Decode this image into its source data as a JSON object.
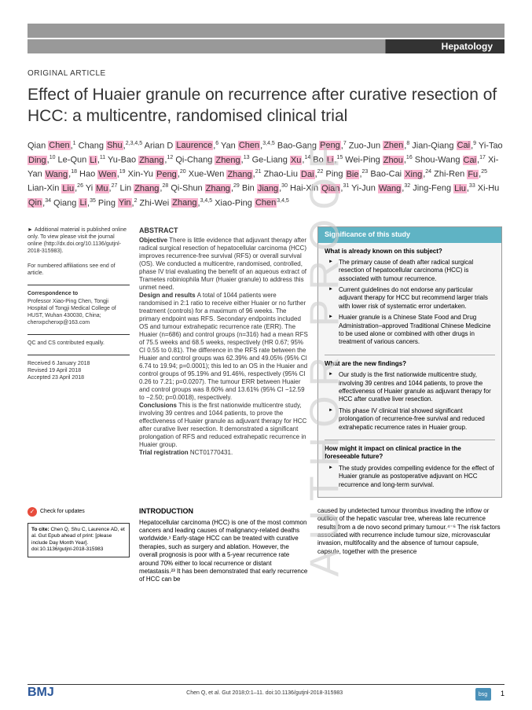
{
  "journal_section": "Hepatology",
  "article_type": "ORIGINAL ARTICLE",
  "title": "Effect of Huaier granule on recurrence after curative resection of HCC: a multicentre, randomised clinical trial",
  "authors_html": "Qian <span class='hl'>Chen</span>,<sup>1</sup> Chang <span class='hl'>Shu</span>,<sup>2,3,4,5</sup> Arian D <span class='hl'>Laurence</span>,<sup>6</sup> Yan <span class='hl'>Chen</span>,<sup>3,4,5</sup> Bao-Gang <span class='hl'>Peng</span>,<sup>7</sup> Zuo-Jun <span class='hl'>Zhen</span>,<sup>8</sup> Jian-Qiang <span class='hl'>Cai</span>,<sup>9</sup> Yi-Tao <span class='hl'>Ding</span>,<sup>10</sup> Le-Qun <span class='hl'>Li</span>,<sup>11</sup> Yu-Bao <span class='hl'>Zhang</span>,<sup>12</sup> Qi-Chang <span class='hl'>Zheng</span>,<sup>13</sup> Ge-Liang <span class='hl'>Xu</span>,<sup>14</sup> Bo <span class='hl'>Li</span>,<sup>15</sup> Wei-Ping <span class='hl'>Zhou</span>,<sup>16</sup> Shou-Wang <span class='hl'>Cai</span>,<sup>17</sup> Xi-Yan <span class='hl'>Wang</span>,<sup>18</sup> Hao <span class='hl'>Wen</span>,<sup>19</sup> Xin-Yu <span class='hl'>Peng</span>,<sup>20</sup> Xue-Wen <span class='hl'>Zhang</span>,<sup>21</sup> Zhao-Liu <span class='hl'>Dai</span>,<sup>22</sup> Ping <span class='hl'>Bie</span>,<sup>23</sup> Bao-Cai <span class='hl'>Xing</span>,<sup>24</sup> Zhi-Ren <span class='hl'>Fu</span>,<sup>25</sup> Lian-Xin <span class='hl'>Liu</span>,<sup>26</sup> Yi <span class='hl'>Mu</span>,<sup>27</sup> Lin <span class='hl'>Zhang</span>,<sup>28</sup> Qi-Shun <span class='hl'>Zhang</span>,<sup>29</sup> Bin <span class='hl'>Jiang</span>,<sup>30</sup> Hai-Xin <span class='hl'>Qian</span>,<sup>31</sup> Yi-Jun <span class='hl'>Wang</span>,<sup>32</sup> Jing-Feng <span class='hl'>Liu</span>,<sup>33</sup> Xi-Hu <span class='hl'>Qin</span>,<sup>34</sup> Qiang <span class='hl'>Li</span>,<sup>35</sup> Ping <span class='hl'>Yin</span>,<sup>2</sup> Zhi-Wei <span class='hl'>Zhang</span>,<sup>3,4,5</sup> Xiao-Ping <span class='hl'>Chen</span><sup>3,4,5</sup>",
  "sidebar": {
    "additional": "Additional material is published online only. To view please visit the journal online (http://dx.doi.org/10.1136/gutjnl-2018-315983).",
    "affiliations": "For numbered affiliations see end of article.",
    "corr_label": "Correspondence to",
    "corr_text": "Professor Xiao-Ping Chen, Tongji Hospital of Tongji Medical College of HUST, Wuhan 430030, China; chenxpchenxp@163.com",
    "equal": "QC and CS contributed equally.",
    "received": "Received 6 January 2018",
    "revised": "Revised 19 April 2018",
    "accepted": "Accepted 23 April 2018"
  },
  "abstract": {
    "heading": "ABSTRACT",
    "objective_label": "Objective ",
    "objective": "There is little evidence that adjuvant therapy after radical surgical resection of hepatocellular carcinoma (HCC) improves recurrence-free survival (RFS) or overall survival (OS). We conducted a multicentre, randomised, controlled, phase IV trial evaluating the benefit of an aqueous extract of Trametes robiniophila Murr (Huaier granule) to address this unmet need.",
    "design_label": "Design and results ",
    "design": "A total of 1044 patients were randomised in 2:1 ratio to receive either Huaier or no further treatment (controls) for a maximum of 96 weeks. The primary endpoint was RFS. Secondary endpoints included OS and tumour extrahepatic recurrence rate (ERR). The Huaier (n=686) and control groups (n=316) had a mean RFS of 75.5 weeks and 68.5 weeks, respectively (HR 0.67; 95% CI 0.55 to 0.81). The difference in the RFS rate between the Huaier and control groups was 62.39% and 49.05% (95% CI 6.74 to 19.94; p=0.0001); this led to an OS in the Huaier and control groups of 95.19% and 91.46%, respectively (95% CI 0.26 to 7.21; p=0.0207). The tumour ERR between Huaier and control groups was 8.60% and 13.61% (95% CI −12.59 to −2.50; p=0.0018), respectively.",
    "conclusions_label": "Conclusions ",
    "conclusions": "This is the first nationwide multicentre study, involving 39 centres and 1044 patients, to prove the effectiveness of Huaier granule as adjuvant therapy for HCC after curative liver resection. It demonstrated a significant prolongation of RFS and reduced extrahepatic recurrence in Huaier group.",
    "trial_label": "Trial registration ",
    "trial": "NCT01770431."
  },
  "significance": {
    "header": "Significance of this study",
    "q1": "What is already known on this subject?",
    "a1": [
      "The primary cause of death after radical surgical resection of hepatocellular carcinoma (HCC) is associated with tumour recurrence.",
      "Current guidelines do not endorse any particular adjuvant therapy for HCC but recommend larger trials with lower risk of systematic error undertaken.",
      "Huaier granule is a Chinese State Food and Drug Administration–approved Traditional Chinese Medicine to be used alone or combined with other drugs in treatment of various cancers."
    ],
    "q2": "What are the new findings?",
    "a2": [
      "Our study is the first nationwide multicentre study, involving 39 centres and 1044 patients, to prove the effectiveness of Huaier granule as adjuvant therapy for HCC after curative liver resection.",
      "This phase IV clinical trial showed significant prolongation of recurrence-free survival and reduced extrahepatic recurrence rates in Huaier group."
    ],
    "q3": "How might it impact on clinical practice in the foreseeable future?",
    "a3": [
      "The study provides compelling evidence for the effect of Huaier granule as postoperative adjuvant on HCC recurrence and long-term survival."
    ]
  },
  "intro": {
    "heading": "INTRODUCTION",
    "col1": "Hepatocellular carcinoma (HCC) is one of the most common cancers and leading causes of malignancy-related deaths worldwide.¹ Early-stage HCC can be treated with curative therapies, such as surgery and ablation. However, the overall prognosis is poor with a 5-year recurrence rate around 70% either to local recurrence or distant metastasis.²³ It has been demonstrated that early recurrence of HCC can be",
    "col2": "caused by undetected tumour thrombus invading the inflow or outflow of the hepatic vascular tree, whereas late recurrence results from a de novo second primary tumour.⁴⁻⁶ The risk factors associated with recurrence include tumour size, microvascular invasion, multifocality and the absence of tumour capsule, capsule, together with the presence"
  },
  "check_updates": "Check for updates",
  "cite_box": {
    "label": "To cite:",
    "text": " Chen Q, Shu C, Laurence AD, et al. Gut Epub ahead of print: [please include Day Month Year]. doi:10.1136/gutjnl-2018-315983"
  },
  "footer": {
    "bmj": "BMJ",
    "cite": "Chen Q, et al. Gut 2018;0:1–11. doi:10.1136/gutjnl-2018-315983",
    "bsg": "bsg",
    "page": "1"
  },
  "watermark": "AUTHOR PROOF"
}
